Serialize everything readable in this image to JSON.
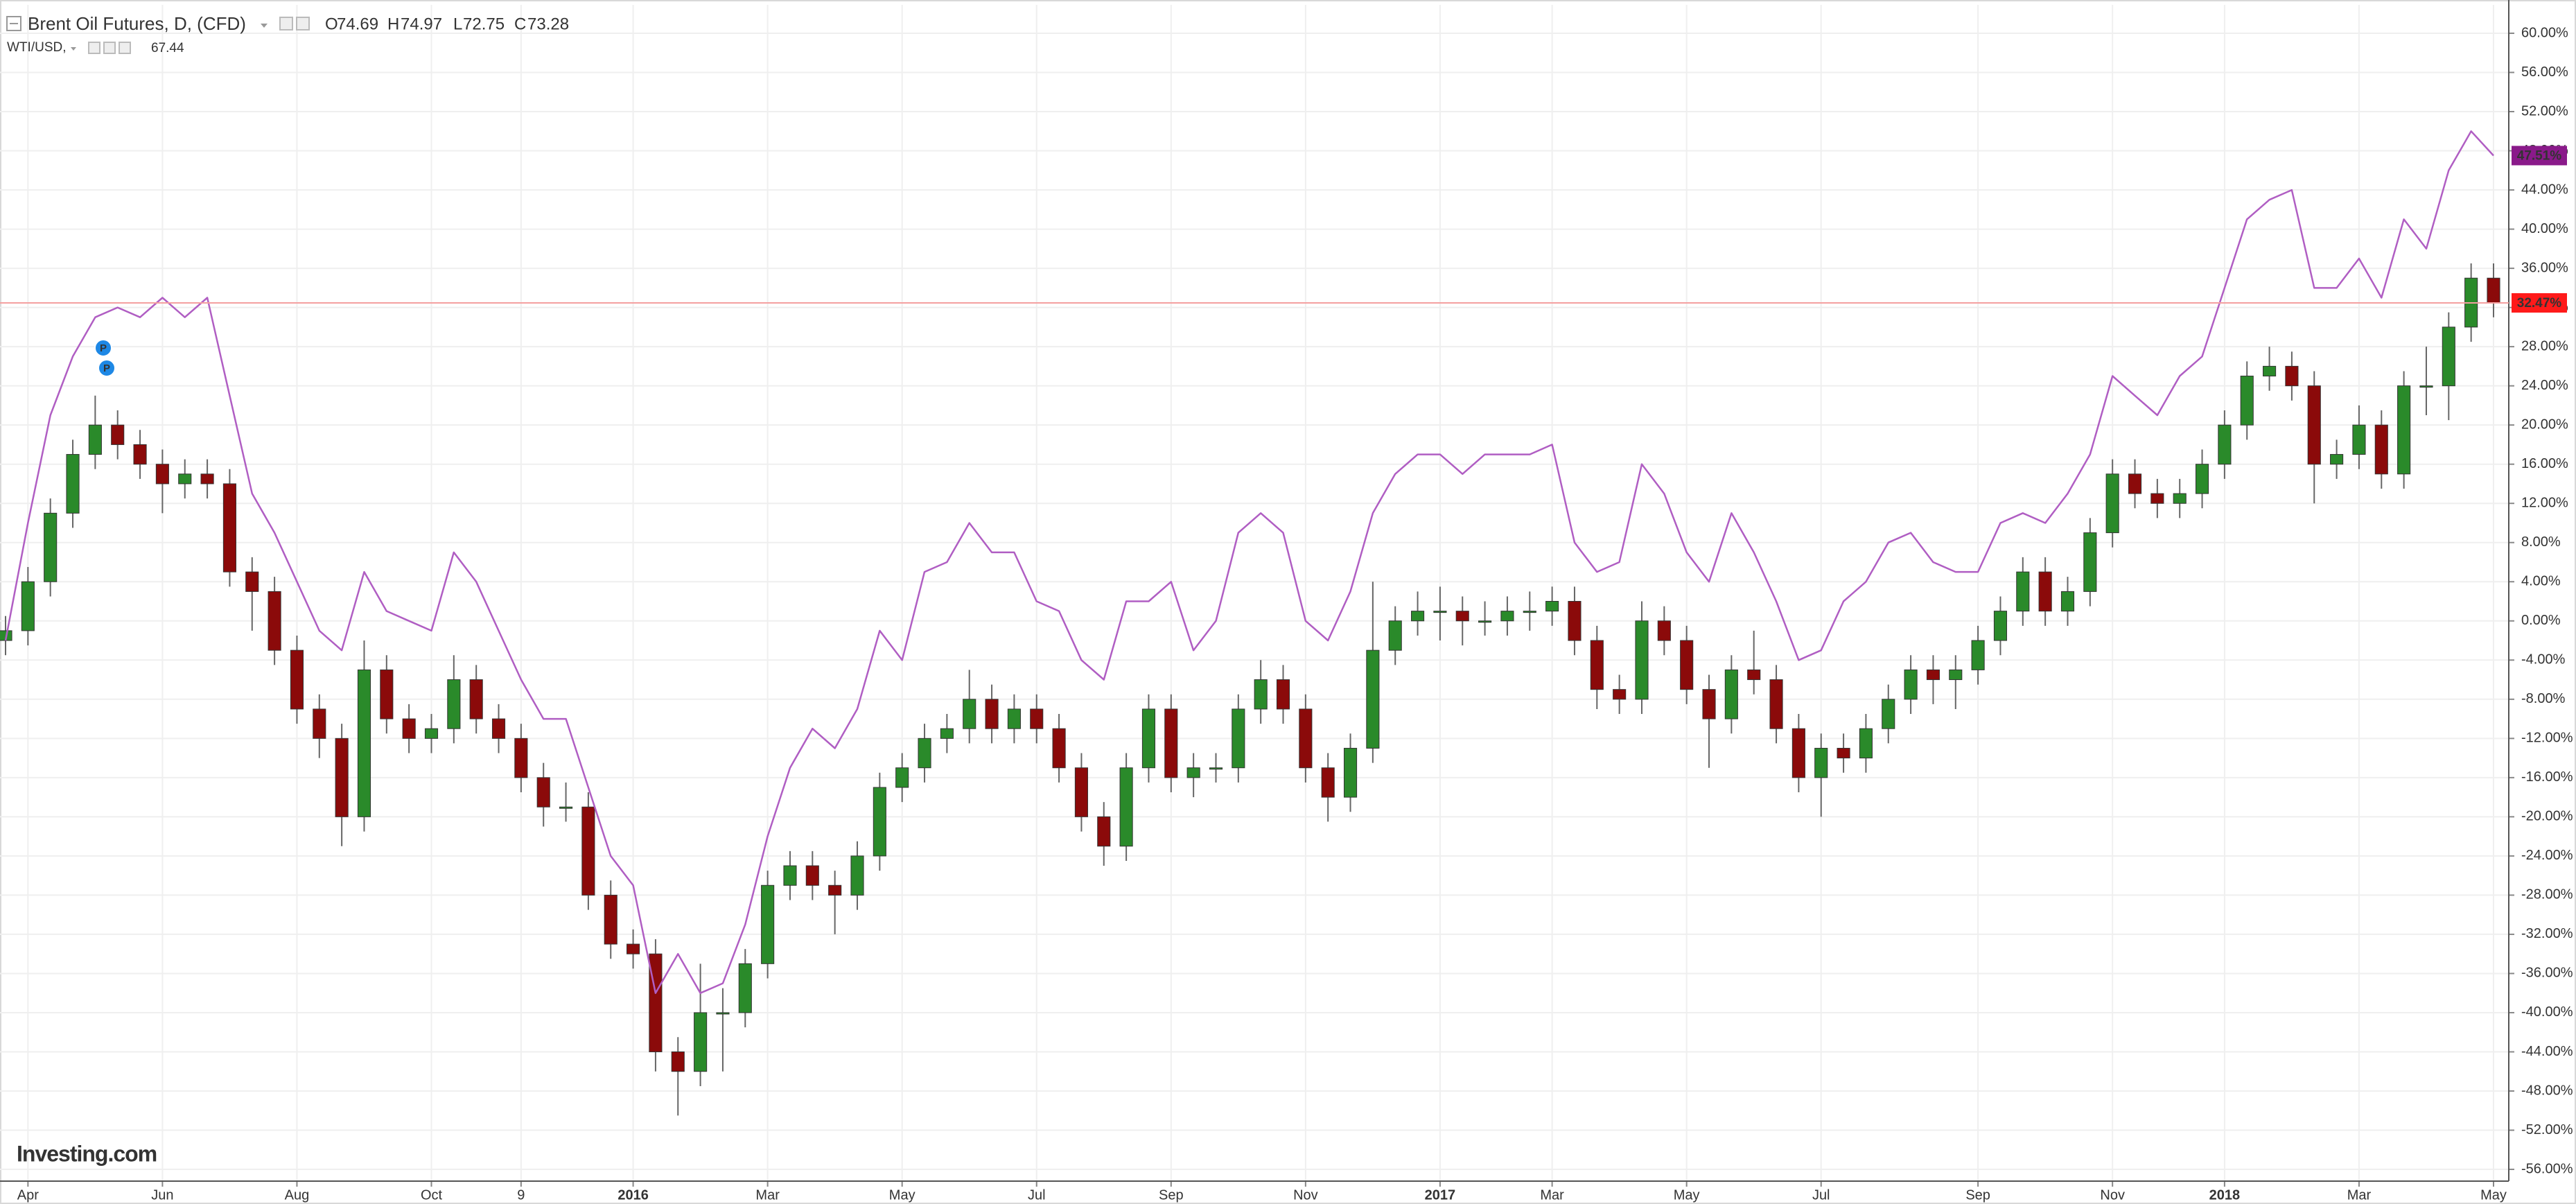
{
  "chart_data": {
    "type": "candlestick",
    "categories": [
      null,
      "Apr",
      null,
      null,
      null,
      null,
      null,
      "Jun",
      null,
      null,
      null,
      null,
      null,
      "Aug",
      null,
      null,
      null,
      null,
      null,
      "Oct",
      null,
      null,
      null,
      "9",
      null,
      null,
      null,
      null,
      "2016",
      null,
      null,
      null,
      null,
      null,
      "Mar",
      null,
      null,
      null,
      null,
      null,
      "May",
      null,
      null,
      null,
      null,
      null,
      "Jul",
      null,
      null,
      null,
      null,
      null,
      "Sep",
      null,
      null,
      null,
      null,
      null,
      "Nov",
      null,
      null,
      null,
      null,
      null,
      "2017",
      null,
      null,
      null,
      null,
      "Mar",
      null,
      null,
      null,
      null,
      null,
      "May",
      null,
      null,
      null,
      null,
      null,
      "Jul",
      null,
      null,
      null,
      null,
      null,
      null,
      "Sep",
      null,
      null,
      null,
      null,
      null,
      "Nov",
      null,
      null,
      null,
      null,
      "2018",
      null,
      null,
      null,
      null,
      null,
      "Mar",
      null,
      null,
      null,
      null,
      null,
      "May"
    ],
    "ylim": [
      -57.2,
      62.9
    ],
    "yticks": [
      {
        "value": -56,
        "label": "-56.00%"
      },
      {
        "value": -52,
        "label": "-52.00%"
      },
      {
        "value": -48,
        "label": "-48.00%"
      },
      {
        "value": -44,
        "label": "-44.00%"
      },
      {
        "value": -40,
        "label": "-40.00%"
      },
      {
        "value": -36,
        "label": "-36.00%"
      },
      {
        "value": -32,
        "label": "-32.00%"
      },
      {
        "value": -28,
        "label": "-28.00%"
      },
      {
        "value": -24,
        "label": "-24.00%"
      },
      {
        "value": -20,
        "label": "-20.00%"
      },
      {
        "value": -16,
        "label": "-16.00%"
      },
      {
        "value": -12,
        "label": "-12.00%"
      },
      {
        "value": -8,
        "label": "-8.00%"
      },
      {
        "value": -4,
        "label": "-4.00%"
      },
      {
        "value": 0,
        "label": "0.00%"
      },
      {
        "value": 4,
        "label": "4.00%"
      },
      {
        "value": 8,
        "label": "8.00%"
      },
      {
        "value": 12,
        "label": "12.00%"
      },
      {
        "value": 16,
        "label": "16.00%"
      },
      {
        "value": 20,
        "label": "20.00%"
      },
      {
        "value": 24,
        "label": "24.00%"
      },
      {
        "value": 28,
        "label": "28.00%"
      },
      {
        "value": 32,
        "label": "32.00%"
      },
      {
        "value": 36,
        "label": "36.00%"
      },
      {
        "value": 40,
        "label": "40.00%"
      },
      {
        "value": 44,
        "label": "44.00%"
      },
      {
        "value": 48,
        "label": "48.00%"
      },
      {
        "value": 52,
        "label": "52.00%"
      },
      {
        "value": 56,
        "label": "56.00%"
      },
      {
        "value": 60,
        "label": "60.00%"
      }
    ],
    "grid": true,
    "series": [
      {
        "name": "Brent Oil Futures, D, (CFD)",
        "type": "candlestick",
        "up_color": "#2a8a2a",
        "down_color": "#8b0a0a",
        "ohlc_labels": [
          {
            "label": "O",
            "value": 74.69
          },
          {
            "label": "H",
            "value": 74.97
          },
          {
            "label": "L",
            "value": 72.75
          },
          {
            "label": "C",
            "value": 73.28
          }
        ],
        "last_value_label": "32.47%",
        "last_color": "#ff1a1a",
        "open": [
          -2,
          -1,
          4,
          11,
          17,
          20,
          18,
          16,
          14,
          15,
          14,
          5,
          3,
          -3,
          -9,
          -12,
          -20,
          -5,
          -10,
          -12,
          -11,
          -6,
          -10,
          -12,
          -16,
          -19,
          -19,
          -28,
          -33,
          -34,
          -44,
          -46,
          -40,
          -40,
          -35,
          -27,
          -25,
          -27,
          -28,
          -24,
          -17,
          -15,
          -12,
          -11,
          -8,
          -11,
          -9,
          -11,
          -15,
          -20,
          -23,
          -15,
          -9,
          -16,
          -15,
          -15,
          -9,
          -6,
          -9,
          -15,
          -18,
          -13,
          -3,
          0,
          1,
          1,
          0,
          0,
          1,
          1,
          2,
          -2,
          -7,
          -8,
          0,
          -2,
          -7,
          -10,
          -5,
          -6,
          -11,
          -16,
          -13,
          -14,
          -11,
          -8,
          -5,
          -6,
          -5,
          -2,
          1,
          5,
          1,
          3,
          9,
          15,
          13,
          12,
          13,
          16,
          20,
          25,
          26,
          24,
          16,
          17,
          20,
          15,
          24,
          24,
          30,
          35
        ],
        "high": [
          0.5,
          5.5,
          12.5,
          18.5,
          23,
          21.5,
          19.5,
          17.5,
          16.5,
          16.5,
          15.5,
          6.5,
          4.5,
          -1.5,
          -7.5,
          -10.5,
          -2,
          -3.5,
          -8.5,
          -9.5,
          -3.5,
          -4.5,
          -8.5,
          -10.5,
          -14.5,
          -16.5,
          -17.5,
          -26.5,
          -31.5,
          -32.5,
          -42.5,
          -35,
          -37.5,
          -33.5,
          -25.5,
          -23.5,
          -23.5,
          -25.5,
          -22.5,
          -15.5,
          -13.5,
          -10.5,
          -9.5,
          -5,
          -6.5,
          -7.5,
          -7.5,
          -9.5,
          -13.5,
          -18.5,
          -13.5,
          -7.5,
          -7.5,
          -13.5,
          -13.5,
          -7.5,
          -4,
          -4.5,
          -7.5,
          -13.5,
          -11.5,
          4,
          1.5,
          3,
          3.5,
          2.5,
          2,
          2.5,
          3,
          3.5,
          3.5,
          -0.5,
          -5.5,
          2,
          1.5,
          -0.5,
          -5.5,
          -3.5,
          -1,
          -4.5,
          -9.5,
          -11.5,
          -11.5,
          -9.5,
          -6.5,
          -3.5,
          -3.5,
          -3.5,
          -0.5,
          2.5,
          6.5,
          6.5,
          4.5,
          10.5,
          16.5,
          16.5,
          14.5,
          14.5,
          17.5,
          21.5,
          26.5,
          28,
          27.5,
          25.5,
          18.5,
          22,
          21.5,
          25.5,
          28,
          31.5,
          36.5,
          36.5
        ],
        "low": [
          -3.5,
          -2.5,
          2.5,
          9.5,
          15.5,
          16.5,
          14.5,
          11,
          12.5,
          12.5,
          3.5,
          -1,
          -4.5,
          -10.5,
          -14,
          -23,
          -21.5,
          -11.5,
          -13.5,
          -13.5,
          -12.5,
          -11.5,
          -13.5,
          -17.5,
          -21,
          -20.5,
          -29.5,
          -34.5,
          -35.5,
          -46,
          -50.5,
          -47.5,
          -46,
          -41.5,
          -36.5,
          -28.5,
          -28.5,
          -32,
          -29.5,
          -25.5,
          -18.5,
          -16.5,
          -13.5,
          -12.5,
          -12.5,
          -12.5,
          -12.5,
          -16.5,
          -21.5,
          -25,
          -24.5,
          -16.5,
          -17.5,
          -18,
          -16.5,
          -16.5,
          -10.5,
          -10.5,
          -16.5,
          -20.5,
          -19.5,
          -14.5,
          -4.5,
          -1.5,
          -2,
          -2.5,
          -1.5,
          -1.5,
          -1,
          -0.5,
          -3.5,
          -9,
          -9.5,
          -9.5,
          -3.5,
          -8.5,
          -15,
          -11.5,
          -7.5,
          -12.5,
          -17.5,
          -20,
          -15.5,
          -15.5,
          -12.5,
          -9.5,
          -8.5,
          -9,
          -6.5,
          -3.5,
          -0.5,
          -0.5,
          -0.5,
          1.5,
          7.5,
          11.5,
          10.5,
          10.5,
          11.5,
          14.5,
          18.5,
          23.5,
          22.5,
          12,
          14.5,
          15.5,
          13.5,
          13.5,
          21,
          20.5,
          28.5,
          31
        ],
        "close": [
          -1,
          4,
          11,
          17,
          20,
          18,
          16,
          14,
          15,
          14,
          5,
          3,
          -3,
          -9,
          -12,
          -20,
          -5,
          -10,
          -12,
          -11,
          -6,
          -10,
          -12,
          -16,
          -19,
          -19,
          -28,
          -33,
          -34,
          -44,
          -46,
          -40,
          -40,
          -35,
          -27,
          -25,
          -27,
          -28,
          -24,
          -17,
          -15,
          -12,
          -11,
          -8,
          -11,
          -9,
          -11,
          -15,
          -20,
          -23,
          -15,
          -9,
          -16,
          -15,
          -15,
          -9,
          -6,
          -9,
          -15,
          -18,
          -13,
          -3,
          0,
          1,
          1,
          0,
          0,
          1,
          1,
          2,
          -2,
          -7,
          -8,
          0,
          -2,
          -7,
          -10,
          -5,
          -6,
          -11,
          -16,
          -13,
          -14,
          -11,
          -8,
          -5,
          -6,
          -5,
          -2,
          1,
          5,
          1,
          3,
          9,
          15,
          13,
          12,
          13,
          16,
          20,
          25,
          26,
          24,
          16,
          17,
          20,
          15,
          24,
          24,
          30,
          35,
          32.47
        ]
      },
      {
        "name": "WTI/USD,",
        "type": "line",
        "color": "#b05ec3",
        "legend_value": 67.44,
        "last_value_label": "47.51%",
        "last_color": "#8a1a8a",
        "values": [
          -2,
          10,
          21,
          27,
          31,
          32,
          31,
          33,
          31,
          33,
          23,
          13,
          9,
          4,
          -1,
          -3,
          5,
          1,
          0,
          -1,
          7,
          4,
          -1,
          -6,
          -10,
          -10,
          -17,
          -24,
          -27,
          -38,
          -34,
          -38,
          -37,
          -31,
          -22,
          -15,
          -11,
          -13,
          -9,
          -1,
          -4,
          5,
          6,
          10,
          7,
          7,
          2,
          1,
          -4,
          -6,
          2,
          2,
          4,
          -3,
          0,
          9,
          11,
          9,
          0,
          -2,
          3,
          11,
          15,
          17,
          17,
          15,
          17,
          17,
          17,
          18,
          8,
          5,
          6,
          16,
          13,
          7,
          4,
          11,
          7,
          2,
          -4,
          -3,
          2,
          4,
          8,
          9,
          6,
          5,
          5,
          10,
          11,
          10,
          13,
          17,
          25,
          23,
          21,
          25,
          27,
          34,
          41,
          43,
          44,
          34,
          34,
          37,
          33,
          41,
          38,
          46,
          50,
          47.51
        ]
      }
    ],
    "annotations": [
      {
        "text": "P"
      },
      {
        "text": "P"
      }
    ],
    "watermark": "Investing.com"
  }
}
